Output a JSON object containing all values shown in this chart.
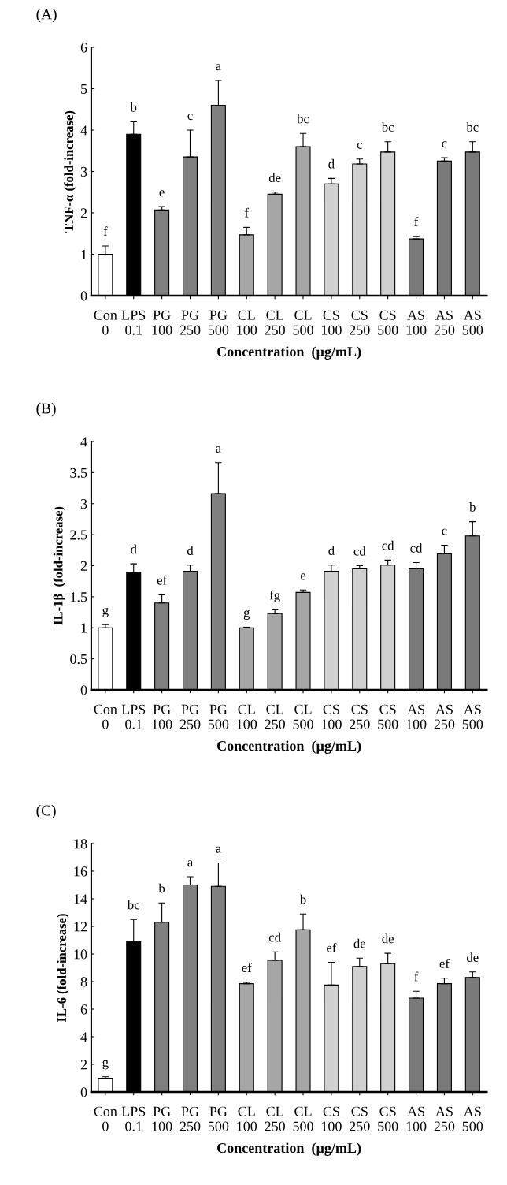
{
  "chart_data": [
    {
      "type": "bar",
      "title": "(A)",
      "xlabel": "Concentration  (µg/mL)",
      "ylabel": "TNF-α (fold-increase)",
      "categories": [
        "Con\n0",
        "LPS\n0.1",
        "PG\n100",
        "PG\n250",
        "PG\n500",
        "CL\n100",
        "CL\n250",
        "CL\n500",
        "CS\n100",
        "CS\n250",
        "CS\n500",
        "AS\n100",
        "AS\n250",
        "AS\n500"
      ],
      "values": [
        1.0,
        3.9,
        2.07,
        3.35,
        4.6,
        1.47,
        2.45,
        3.6,
        2.7,
        3.18,
        3.47,
        1.37,
        3.25,
        3.47
      ],
      "errors": [
        0.2,
        0.3,
        0.08,
        0.65,
        0.6,
        0.18,
        0.05,
        0.32,
        0.13,
        0.12,
        0.25,
        0.06,
        0.08,
        0.25
      ],
      "colors": [
        "#ffffff",
        "#000000",
        "#808080",
        "#808080",
        "#808080",
        "#a6a6a6",
        "#a6a6a6",
        "#a6a6a6",
        "#d0d0d0",
        "#d0d0d0",
        "#d0d0d0",
        "#7a7a7a",
        "#7a7a7a",
        "#7a7a7a"
      ],
      "ylim": [
        0,
        6
      ],
      "yticks": [
        0,
        1,
        2,
        3,
        4,
        5,
        6
      ],
      "grid": false,
      "legend": false,
      "annotations": [
        {
          "text": "f",
          "x": "Con\n0",
          "y": 1.2
        },
        {
          "text": "b",
          "x": "LPS\n0.1",
          "y": 4.2
        },
        {
          "text": "e",
          "x": "PG\n100",
          "y": 2.15
        },
        {
          "text": "c",
          "x": "PG\n250",
          "y": 4.0
        },
        {
          "text": "a",
          "x": "PG\n500",
          "y": 5.2
        },
        {
          "text": "f",
          "x": "CL\n100",
          "y": 1.65
        },
        {
          "text": "de",
          "x": "CL\n250",
          "y": 2.5
        },
        {
          "text": "bc",
          "x": "CL\n500",
          "y": 3.92
        },
        {
          "text": "d",
          "x": "CS\n100",
          "y": 2.83
        },
        {
          "text": "c",
          "x": "CS\n250",
          "y": 3.3
        },
        {
          "text": "bc",
          "x": "CS\n500",
          "y": 3.72
        },
        {
          "text": "f",
          "x": "AS\n100",
          "y": 1.43
        },
        {
          "text": "c",
          "x": "AS\n250",
          "y": 3.33
        },
        {
          "text": "bc",
          "x": "AS\n500",
          "y": 3.72
        }
      ]
    },
    {
      "type": "bar",
      "title": "(B)",
      "xlabel": "Concentration  (µg/mL)",
      "ylabel": "IL-1β  (fold-increase)",
      "categories": [
        "Con\n0",
        "LPS\n0.1",
        "PG\n100",
        "PG\n250",
        "PG\n500",
        "CL\n100",
        "CL\n250",
        "CL\n500",
        "CS\n100",
        "CS\n250",
        "CS\n500",
        "AS\n100",
        "AS\n250",
        "AS\n500"
      ],
      "values": [
        1.0,
        1.89,
        1.4,
        1.91,
        3.16,
        1.0,
        1.23,
        1.57,
        1.91,
        1.95,
        2.01,
        1.95,
        2.19,
        2.48
      ],
      "errors": [
        0.05,
        0.14,
        0.13,
        0.1,
        0.5,
        0.01,
        0.06,
        0.04,
        0.1,
        0.05,
        0.08,
        0.1,
        0.14,
        0.23
      ],
      "colors": [
        "#ffffff",
        "#000000",
        "#808080",
        "#808080",
        "#808080",
        "#a6a6a6",
        "#a6a6a6",
        "#a6a6a6",
        "#d0d0d0",
        "#d0d0d0",
        "#d0d0d0",
        "#7a7a7a",
        "#7a7a7a",
        "#7a7a7a"
      ],
      "ylim": [
        0,
        4
      ],
      "yticks": [
        0,
        0.5,
        1,
        1.5,
        2,
        2.5,
        3,
        3.5,
        4
      ],
      "grid": false,
      "legend": false,
      "annotations": [
        {
          "text": "g",
          "x": "Con\n0",
          "y": 1.05
        },
        {
          "text": "d",
          "x": "LPS\n0.1",
          "y": 2.03
        },
        {
          "text": "ef",
          "x": "PG\n100",
          "y": 1.53
        },
        {
          "text": "d",
          "x": "PG\n250",
          "y": 2.01
        },
        {
          "text": "a",
          "x": "PG\n500",
          "y": 3.66
        },
        {
          "text": "g",
          "x": "CL\n100",
          "y": 1.01
        },
        {
          "text": "fg",
          "x": "CL\n250",
          "y": 1.29
        },
        {
          "text": "e",
          "x": "CL\n500",
          "y": 1.61
        },
        {
          "text": "d",
          "x": "CS\n100",
          "y": 2.01
        },
        {
          "text": "cd",
          "x": "CS\n250",
          "y": 2.0
        },
        {
          "text": "cd",
          "x": "CS\n500",
          "y": 2.09
        },
        {
          "text": "cd",
          "x": "AS\n100",
          "y": 2.05
        },
        {
          "text": "c",
          "x": "AS\n250",
          "y": 2.33
        },
        {
          "text": "b",
          "x": "AS\n500",
          "y": 2.71
        }
      ]
    },
    {
      "type": "bar",
      "title": "(C)",
      "xlabel": "Concentration  (µg/mL)",
      "ylabel": "IL-6 (fold-increase)",
      "categories": [
        "Con\n0",
        "LPS\n0.1",
        "PG\n100",
        "PG\n250",
        "PG\n500",
        "CL\n100",
        "CL\n250",
        "CL\n500",
        "CS\n100",
        "CS\n250",
        "CS\n500",
        "AS\n100",
        "AS\n250",
        "AS\n500"
      ],
      "values": [
        1.0,
        10.9,
        12.3,
        15.0,
        14.9,
        7.85,
        9.55,
        11.75,
        7.75,
        9.1,
        9.3,
        6.8,
        7.85,
        8.3
      ],
      "errors": [
        0.1,
        1.6,
        1.4,
        0.6,
        1.7,
        0.1,
        0.6,
        1.15,
        1.65,
        0.6,
        0.75,
        0.5,
        0.4,
        0.4
      ],
      "colors": [
        "#ffffff",
        "#000000",
        "#808080",
        "#808080",
        "#808080",
        "#a6a6a6",
        "#a6a6a6",
        "#a6a6a6",
        "#d0d0d0",
        "#d0d0d0",
        "#d0d0d0",
        "#7a7a7a",
        "#7a7a7a",
        "#7a7a7a"
      ],
      "ylim": [
        0,
        18
      ],
      "yticks": [
        0,
        2,
        4,
        6,
        8,
        10,
        12,
        14,
        16,
        18
      ],
      "grid": false,
      "legend": false,
      "annotations": [
        {
          "text": "g",
          "x": "Con\n0",
          "y": 1.1
        },
        {
          "text": "bc",
          "x": "LPS\n0.1",
          "y": 12.5
        },
        {
          "text": "b",
          "x": "PG\n100",
          "y": 13.7
        },
        {
          "text": "a",
          "x": "PG\n250",
          "y": 15.6
        },
        {
          "text": "a",
          "x": "PG\n500",
          "y": 16.6
        },
        {
          "text": "ef",
          "x": "CL\n100",
          "y": 7.95
        },
        {
          "text": "cd",
          "x": "CL\n250",
          "y": 10.15
        },
        {
          "text": "b",
          "x": "CL\n500",
          "y": 12.9
        },
        {
          "text": "ef",
          "x": "CS\n100",
          "y": 9.4
        },
        {
          "text": "de",
          "x": "CS\n250",
          "y": 9.7
        },
        {
          "text": "de",
          "x": "CS\n500",
          "y": 10.05
        },
        {
          "text": "f",
          "x": "AS\n100",
          "y": 7.3
        },
        {
          "text": "ef",
          "x": "AS\n250",
          "y": 8.25
        },
        {
          "text": "de",
          "x": "AS\n500",
          "y": 8.7
        }
      ]
    }
  ]
}
